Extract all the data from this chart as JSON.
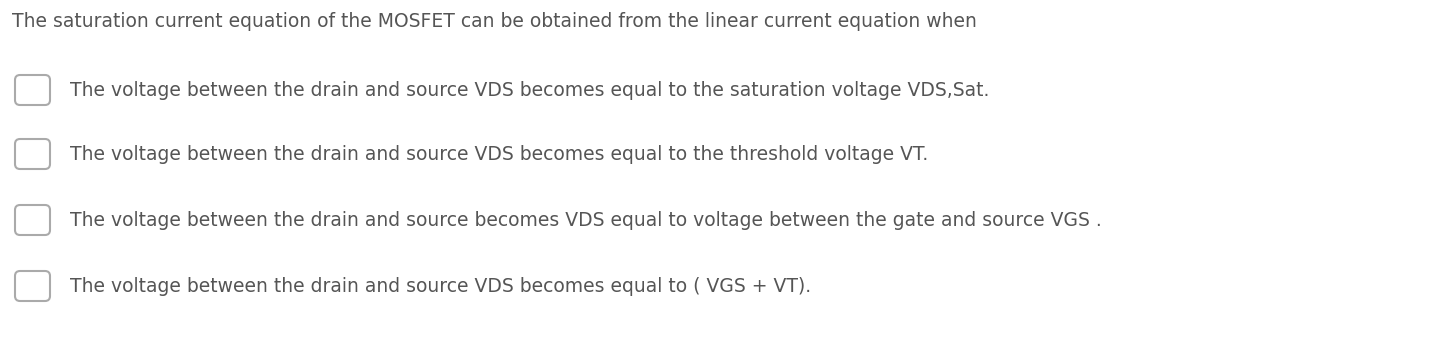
{
  "background_color": "#ffffff",
  "title": "The saturation current equation of the MOSFET can be obtained from the linear current equation when",
  "title_fontsize": 13.5,
  "title_color": "#555555",
  "options": [
    "The voltage between the drain and source VDS becomes equal to the saturation voltage VDS,Sat.",
    "The voltage between the drain and source VDS becomes equal to the threshold voltage VT.",
    "The voltage between the drain and source becomes VDS equal to voltage between the gate and source VGS .",
    "The voltage between the drain and source VDS becomes equal to ( VGS + VT)."
  ],
  "option_fontsize": 13.5,
  "option_color": "#555555",
  "checkbox_edge_color": "#aaaaaa",
  "checkbox_face_color": "#ffffff"
}
